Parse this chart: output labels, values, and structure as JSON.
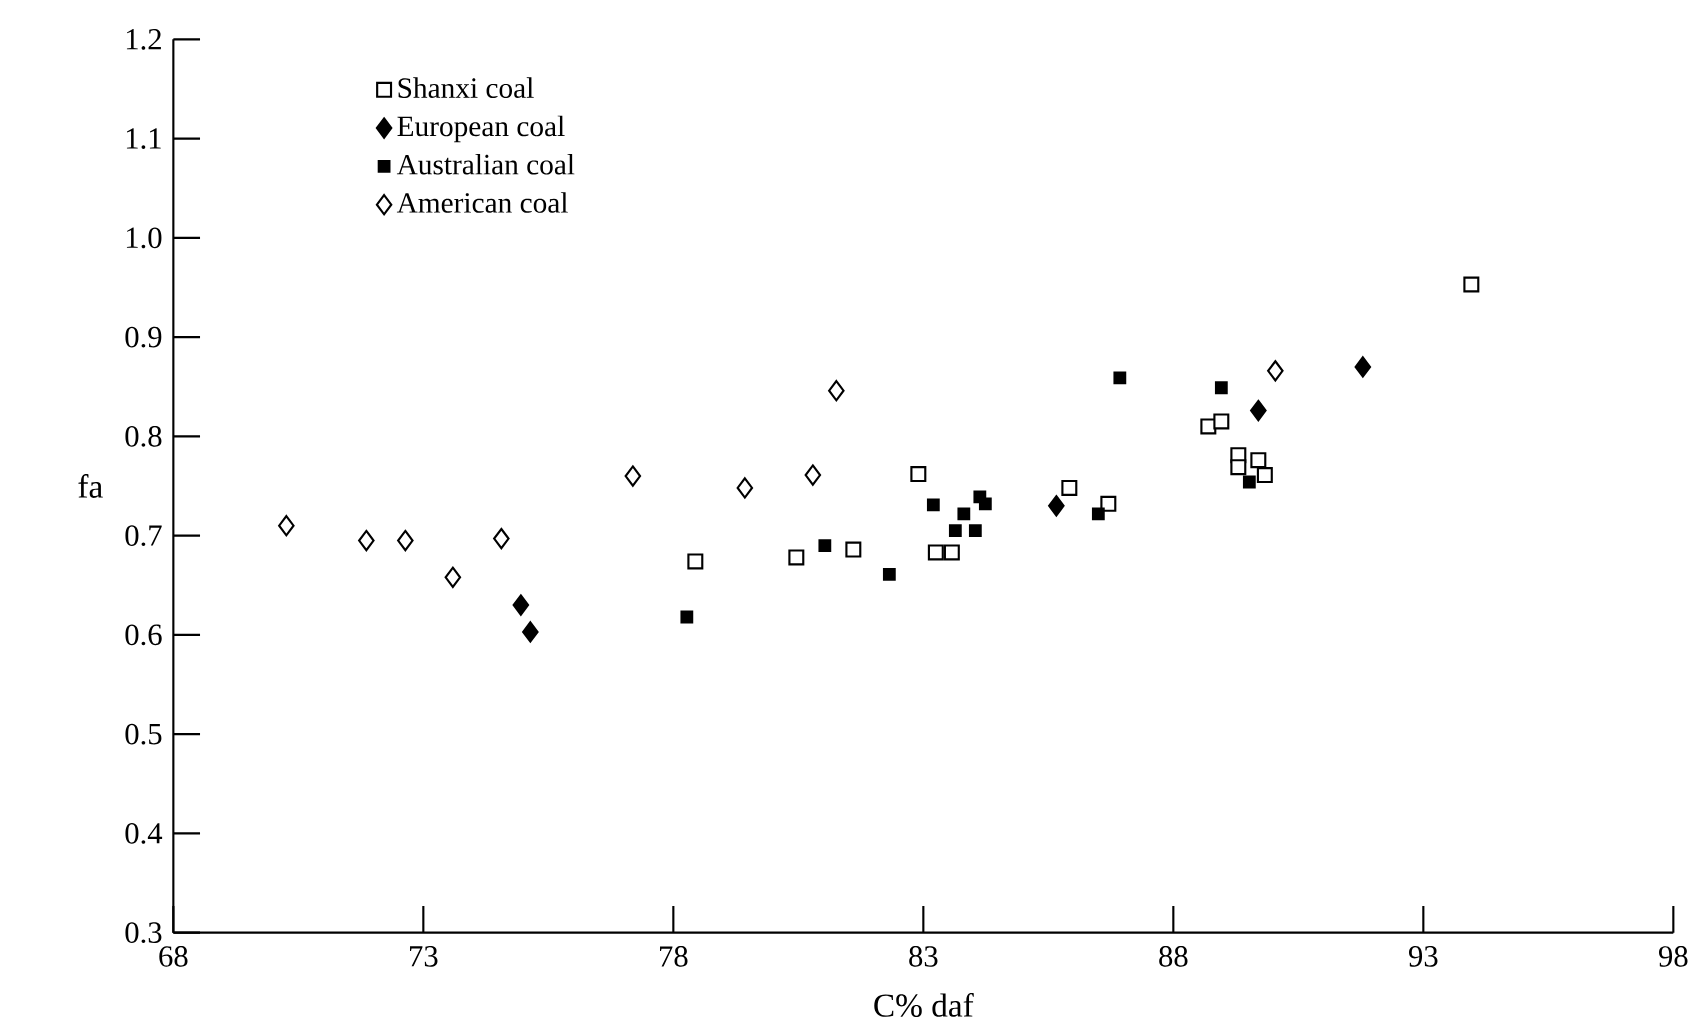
{
  "chart_data": {
    "type": "scatter",
    "xlabel": "C% daf",
    "ylabel": "fa",
    "xlim": [
      68,
      98
    ],
    "xticks": [
      68,
      73,
      78,
      83,
      88,
      93,
      98
    ],
    "ylim": [
      0.3,
      1.2
    ],
    "yticks": [
      {
        "value": 0.3,
        "label": "0.3"
      },
      {
        "value": 0.4,
        "label": "0.4"
      },
      {
        "value": 0.5,
        "label": "0.5"
      },
      {
        "value": 0.6,
        "label": "0.6"
      },
      {
        "value": 0.7,
        "label": "0.7"
      },
      {
        "value": 0.8,
        "label": "0.8"
      },
      {
        "value": 0.9,
        "label": "0.9"
      },
      {
        "value": 1.0,
        "label": "1.0"
      },
      {
        "value": 1.1,
        "label": "1.1"
      },
      {
        "value": 1.2,
        "label": "1.2"
      }
    ],
    "grid": false,
    "legend": "top left",
    "series": [
      {
        "name": "Shanxi coal",
        "color": "#ffffff",
        "marker": "square",
        "x": [
          78.44,
          80.46,
          81.6,
          82.9,
          83.25,
          83.57,
          85.92,
          86.7,
          88.7,
          88.96,
          89.3,
          89.3,
          89.7,
          89.83,
          93.96
        ],
        "values": [
          0.674,
          0.678,
          0.686,
          0.762,
          0.683,
          0.683,
          0.748,
          0.732,
          0.81,
          0.815,
          0.781,
          0.769,
          0.776,
          0.761,
          0.953
        ]
      },
      {
        "name": "European coal",
        "color": "#000000",
        "marker": "diamond",
        "x": [
          74.95,
          75.14,
          85.66,
          89.7,
          91.79
        ],
        "values": [
          0.63,
          0.603,
          0.73,
          0.826,
          0.87
        ]
      },
      {
        "name": "Australian coal",
        "color": "#000000",
        "marker": "square",
        "x": [
          78.27,
          81.03,
          82.32,
          83.2,
          83.64,
          83.81,
          84.04,
          84.13,
          84.24,
          86.5,
          86.93,
          88.96,
          89.52
        ],
        "values": [
          0.618,
          0.69,
          0.661,
          0.731,
          0.705,
          0.722,
          0.705,
          0.739,
          0.732,
          0.722,
          0.859,
          0.849,
          0.754
        ]
      },
      {
        "name": "American coal",
        "color": "#ffffff",
        "marker": "diamond",
        "x": [
          70.26,
          71.86,
          72.64,
          73.59,
          74.56,
          77.19,
          79.43,
          80.79,
          81.26,
          90.04
        ],
        "values": [
          0.71,
          0.695,
          0.695,
          0.658,
          0.697,
          0.76,
          0.748,
          0.761,
          0.846,
          0.866
        ]
      }
    ]
  }
}
